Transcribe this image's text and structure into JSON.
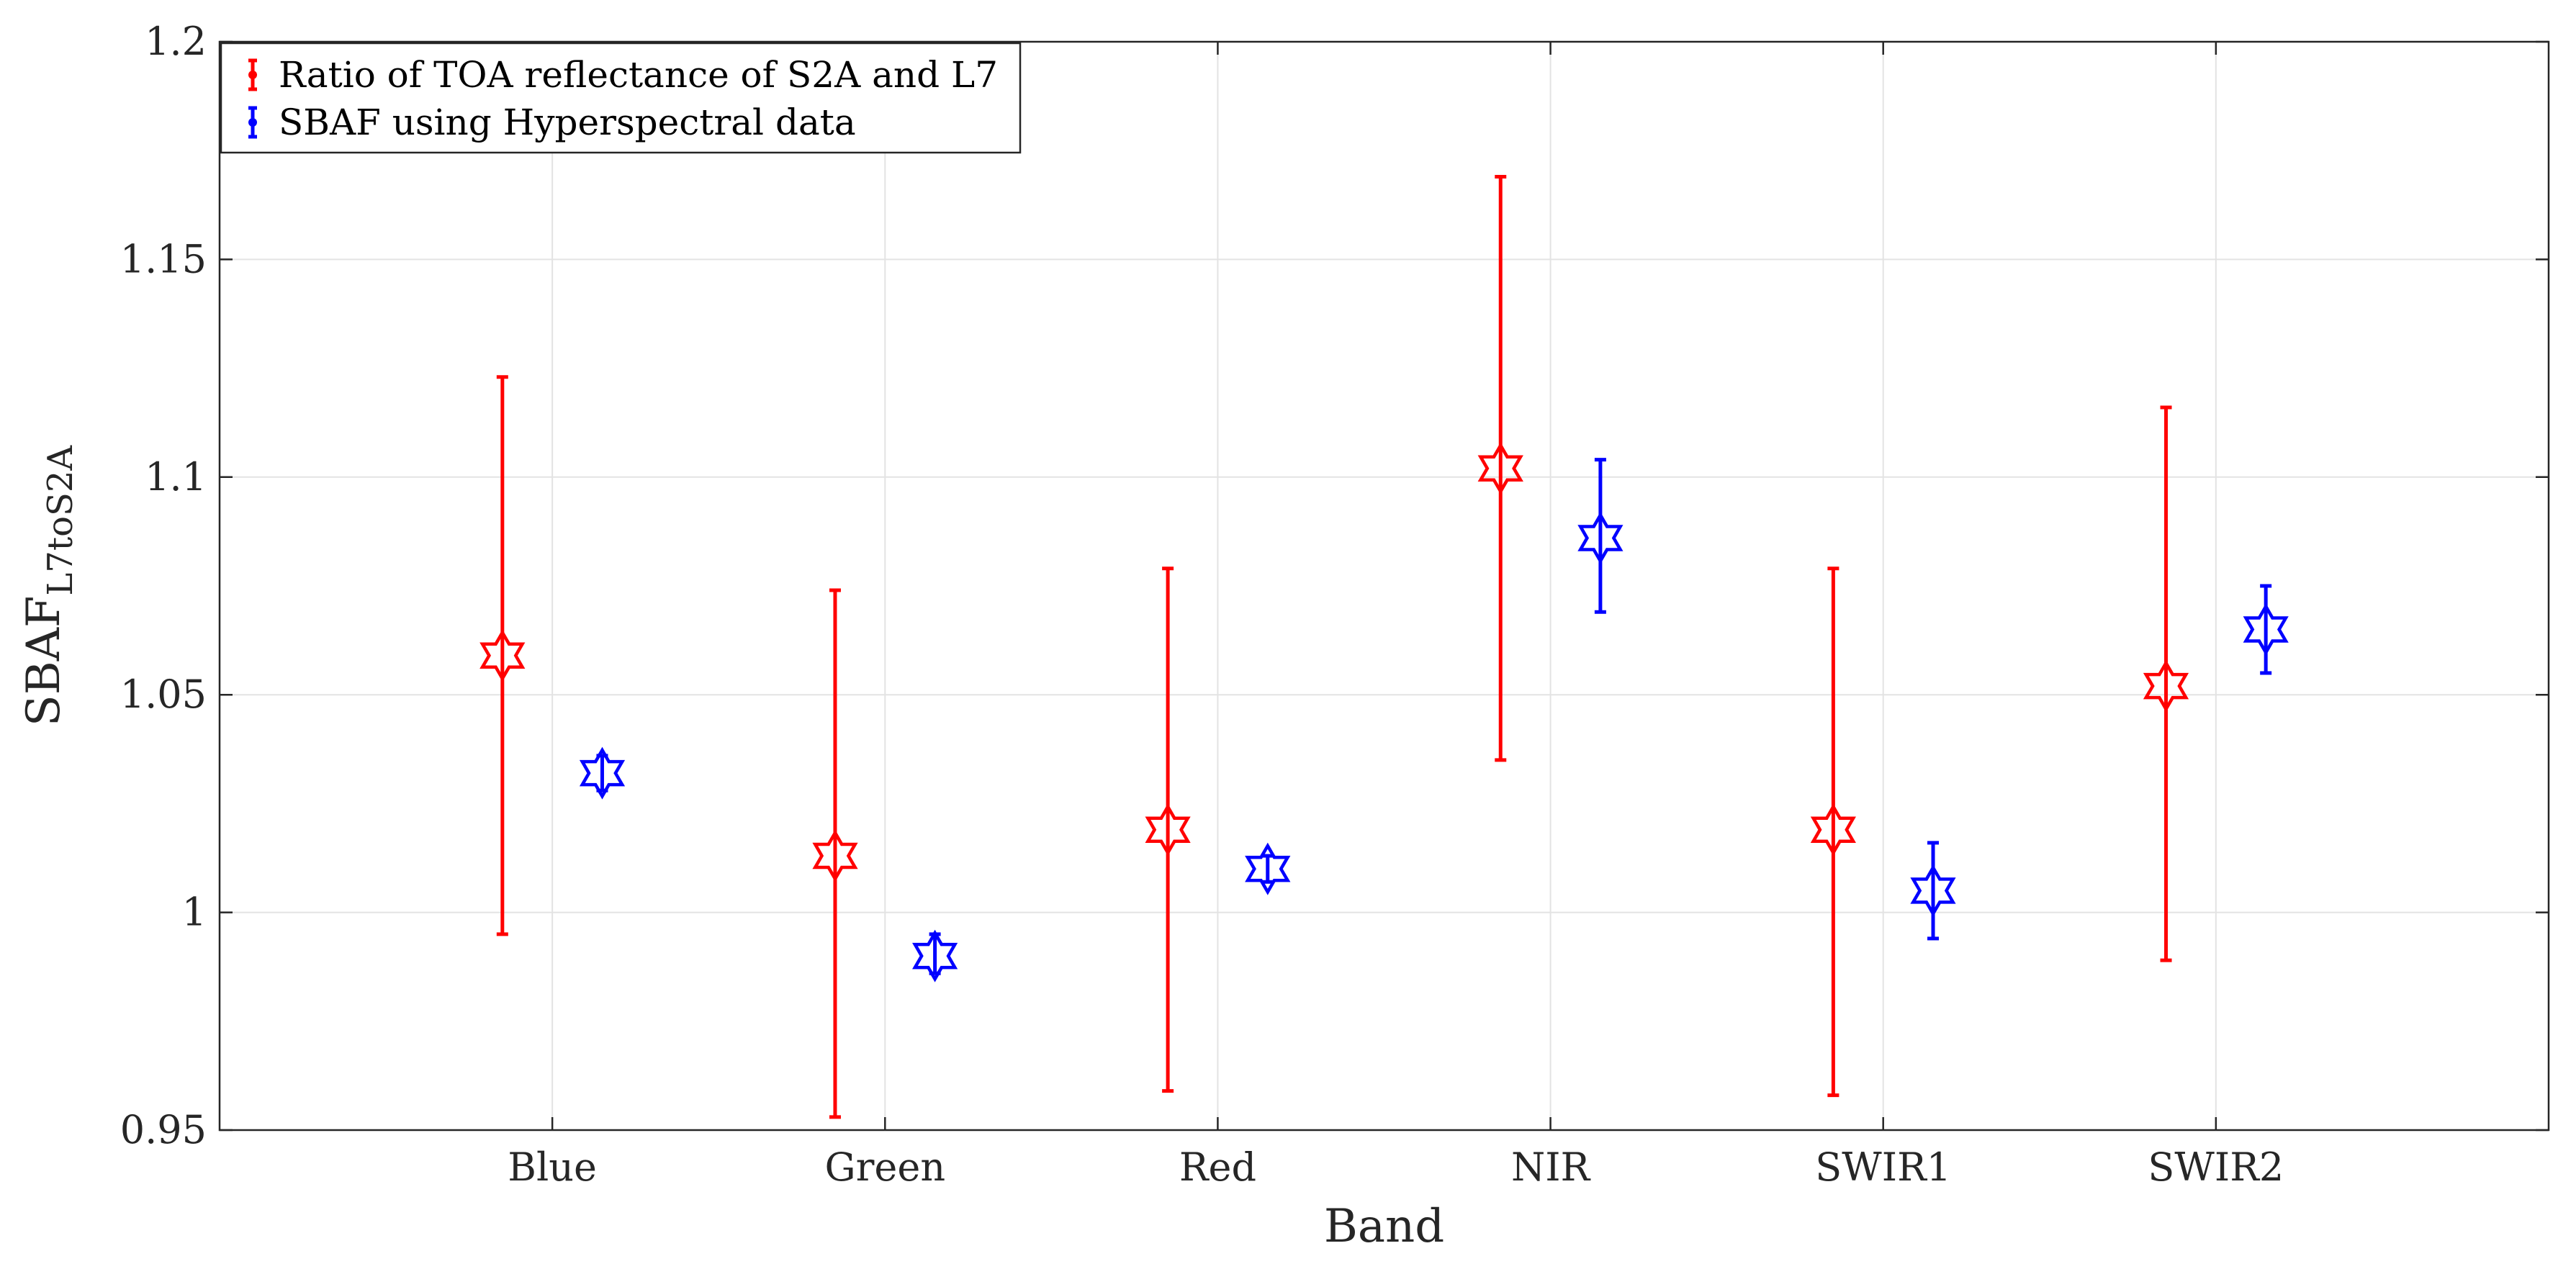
{
  "chart_data": {
    "type": "errorbar",
    "title": "",
    "xlabel": "Band",
    "ylabel_main": "SBAF",
    "ylabel_sub": "L7toS2A",
    "categories": [
      "Blue",
      "Green",
      "Red",
      "NIR",
      "SWIR1",
      "SWIR2"
    ],
    "ylim": [
      0.95,
      1.2
    ],
    "yticks": [
      0.95,
      1,
      1.05,
      1.1,
      1.15,
      1.2
    ],
    "ytick_labels": [
      "0.95",
      "1",
      "1.05",
      "1.1",
      "1.15",
      "1.2"
    ],
    "grid": true,
    "legend_position": "top-left",
    "marker": "hexagram",
    "series": [
      {
        "name": "Ratio of TOA reflectance of S2A and L7",
        "color": "#ff0000",
        "offset": -0.15,
        "values": [
          1.059,
          1.013,
          1.019,
          1.102,
          1.019,
          1.052
        ],
        "lower": [
          0.995,
          0.953,
          0.959,
          1.035,
          0.958,
          0.989
        ],
        "upper": [
          1.123,
          1.074,
          1.079,
          1.169,
          1.079,
          1.116
        ]
      },
      {
        "name": "SBAF using Hyperspectral data",
        "color": "#0000ff",
        "offset": 0.15,
        "values": [
          1.032,
          0.99,
          1.01,
          1.086,
          1.005,
          1.065
        ],
        "lower": [
          1.028,
          0.986,
          1.007,
          1.069,
          0.994,
          1.055
        ],
        "upper": [
          1.036,
          0.995,
          1.013,
          1.104,
          1.016,
          1.075
        ]
      }
    ]
  }
}
